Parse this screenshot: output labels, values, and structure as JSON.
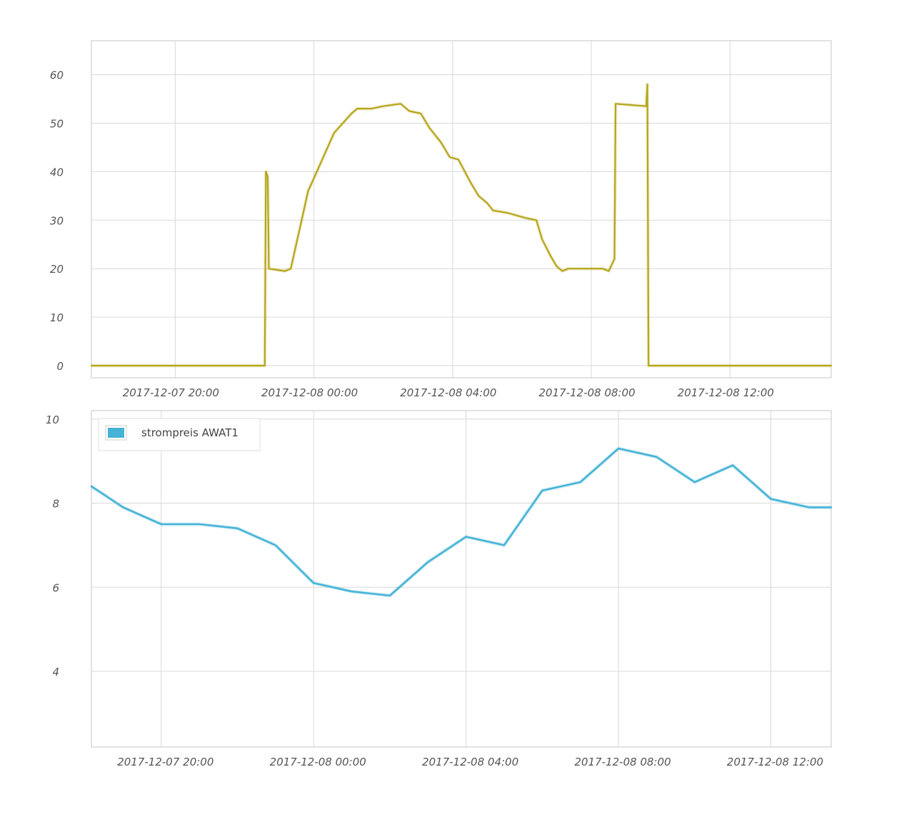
{
  "chart_data": [
    {
      "type": "line",
      "title": "",
      "xlabel": "",
      "ylabel": "",
      "x_range": [
        "2017-12-07 17:35",
        "2017-12-08 14:55"
      ],
      "ylim": [
        -2.5,
        67
      ],
      "y_ticks": [
        0,
        10,
        20,
        30,
        40,
        50,
        60
      ],
      "x_ticks": [
        "2017-12-07 20:00",
        "2017-12-08 00:00",
        "2017-12-08 04:00",
        "2017-12-08 08:00",
        "2017-12-08 12:00"
      ],
      "grid": true,
      "legend": null,
      "series": [
        {
          "color": "#b5a51a",
          "points": [
            [
              "2017-12-07 17:35",
              0
            ],
            [
              "2017-12-07 22:35",
              0
            ],
            [
              "2017-12-07 22:37",
              40
            ],
            [
              "2017-12-07 22:40",
              39
            ],
            [
              "2017-12-07 22:42",
              20
            ],
            [
              "2017-12-07 23:10",
              19.5
            ],
            [
              "2017-12-07 23:20",
              20
            ],
            [
              "2017-12-07 23:35",
              28
            ],
            [
              "2017-12-07 23:50",
              36
            ],
            [
              "2017-12-08 00:05",
              40
            ],
            [
              "2017-12-08 00:20",
              44
            ],
            [
              "2017-12-08 00:35",
              48
            ],
            [
              "2017-12-08 00:50",
              50
            ],
            [
              "2017-12-08 01:05",
              52
            ],
            [
              "2017-12-08 01:15",
              53
            ],
            [
              "2017-12-08 01:40",
              53
            ],
            [
              "2017-12-08 02:00",
              53.5
            ],
            [
              "2017-12-08 02:30",
              54
            ],
            [
              "2017-12-08 02:45",
              52.5
            ],
            [
              "2017-12-08 03:05",
              52
            ],
            [
              "2017-12-08 03:20",
              49
            ],
            [
              "2017-12-08 03:40",
              46
            ],
            [
              "2017-12-08 03:55",
              43
            ],
            [
              "2017-12-08 04:10",
              42.5
            ],
            [
              "2017-12-08 04:30",
              38
            ],
            [
              "2017-12-08 04:45",
              35
            ],
            [
              "2017-12-08 05:00",
              33.5
            ],
            [
              "2017-12-08 05:10",
              32
            ],
            [
              "2017-12-08 05:35",
              31.5
            ],
            [
              "2017-12-08 06:05",
              30.5
            ],
            [
              "2017-12-08 06:25",
              30
            ],
            [
              "2017-12-08 06:35",
              26
            ],
            [
              "2017-12-08 06:50",
              22.5
            ],
            [
              "2017-12-08 07:00",
              20.5
            ],
            [
              "2017-12-08 07:10",
              19.5
            ],
            [
              "2017-12-08 07:20",
              20
            ],
            [
              "2017-12-08 08:20",
              20
            ],
            [
              "2017-12-08 08:30",
              19.5
            ],
            [
              "2017-12-08 08:40",
              22
            ],
            [
              "2017-12-08 08:42",
              54
            ],
            [
              "2017-12-08 09:35",
              53.5
            ],
            [
              "2017-12-08 09:37",
              58
            ],
            [
              "2017-12-08 09:39",
              0
            ],
            [
              "2017-12-08 14:55",
              0
            ]
          ]
        }
      ]
    },
    {
      "type": "line",
      "title": "",
      "xlabel": "",
      "ylabel": "",
      "x_range": [
        "2017-12-07 18:10",
        "2017-12-08 13:35"
      ],
      "ylim": [
        2.2,
        10.2
      ],
      "y_ticks": [
        4,
        6,
        8,
        10
      ],
      "x_ticks": [
        "2017-12-07 20:00",
        "2017-12-08 00:00",
        "2017-12-08 04:00",
        "2017-12-08 08:00",
        "2017-12-08 12:00"
      ],
      "grid": true,
      "legend": "top-left",
      "series": [
        {
          "name": "strompreis AWAT1",
          "color": "#45b3d6",
          "points": [
            [
              "2017-12-07 18:10",
              8.4
            ],
            [
              "2017-12-07 19:00",
              7.9
            ],
            [
              "2017-12-07 20:00",
              7.5
            ],
            [
              "2017-12-07 21:00",
              7.5
            ],
            [
              "2017-12-07 22:00",
              7.4
            ],
            [
              "2017-12-07 23:00",
              7.0
            ],
            [
              "2017-12-08 00:00",
              6.1
            ],
            [
              "2017-12-08 01:00",
              5.9
            ],
            [
              "2017-12-08 02:00",
              5.8
            ],
            [
              "2017-12-08 03:00",
              6.6
            ],
            [
              "2017-12-08 04:00",
              7.2
            ],
            [
              "2017-12-08 05:00",
              7.0
            ],
            [
              "2017-12-08 06:00",
              8.3
            ],
            [
              "2017-12-08 07:00",
              8.5
            ],
            [
              "2017-12-08 08:00",
              9.3
            ],
            [
              "2017-12-08 09:00",
              9.1
            ],
            [
              "2017-12-08 10:00",
              8.5
            ],
            [
              "2017-12-08 11:00",
              8.9
            ],
            [
              "2017-12-08 12:00",
              8.1
            ],
            [
              "2017-12-08 13:00",
              7.9
            ],
            [
              "2017-12-08 13:35",
              7.9
            ]
          ]
        }
      ]
    }
  ]
}
